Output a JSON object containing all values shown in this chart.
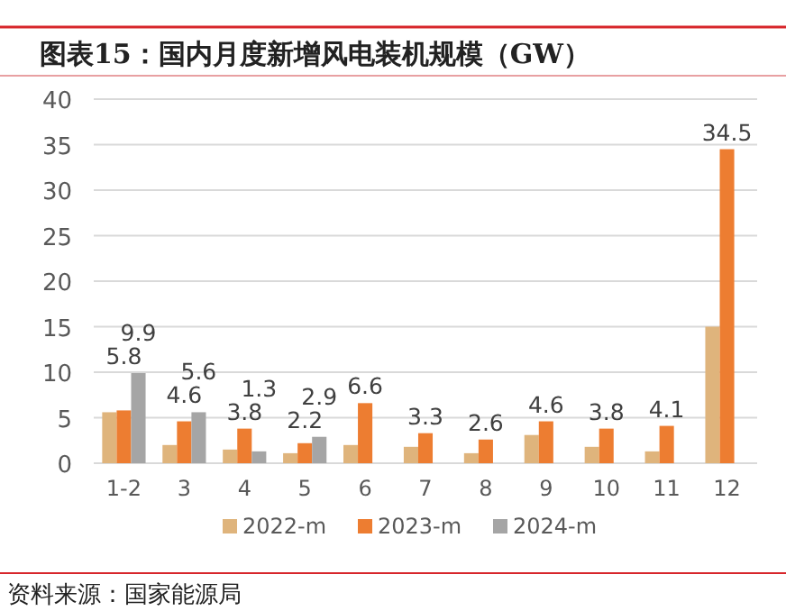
{
  "chart_data": {
    "type": "bar",
    "title": "图表15：国内月度新增风电装机规模（GW）",
    "categories": [
      "1-2",
      "3",
      "4",
      "5",
      "6",
      "7",
      "8",
      "9",
      "10",
      "11",
      "12"
    ],
    "series": [
      {
        "name": "2022-m",
        "color": "#dfb47c",
        "values": [
          5.6,
          2.0,
          1.5,
          1.1,
          2.0,
          1.8,
          1.1,
          3.1,
          1.8,
          1.3,
          15.0
        ]
      },
      {
        "name": "2023-m",
        "color": "#ed7d31",
        "values": [
          5.8,
          4.6,
          3.8,
          2.2,
          6.6,
          3.3,
          2.6,
          4.6,
          3.8,
          4.1,
          34.5
        ],
        "value_labels": [
          "5.8",
          "4.6",
          "3.8",
          "2.2",
          "6.6",
          "3.3",
          "2.6",
          "4.6",
          "3.8",
          "4.1",
          "34.5"
        ]
      },
      {
        "name": "2024-m",
        "color": "#a5a5a5",
        "values": [
          9.9,
          5.6,
          1.3,
          2.9,
          null,
          null,
          null,
          null,
          null,
          null,
          null
        ],
        "value_labels": [
          "9.9",
          "5.6",
          "1.3",
          "2.9",
          null,
          null,
          null,
          null,
          null,
          null,
          null
        ]
      }
    ],
    "ylim": [
      0,
      40
    ],
    "yticks": [
      0,
      5,
      10,
      15,
      20,
      25,
      30,
      35,
      40
    ],
    "grid": "y",
    "legend": "bottom",
    "annotations": [
      "资料来源：国家能源局"
    ]
  }
}
